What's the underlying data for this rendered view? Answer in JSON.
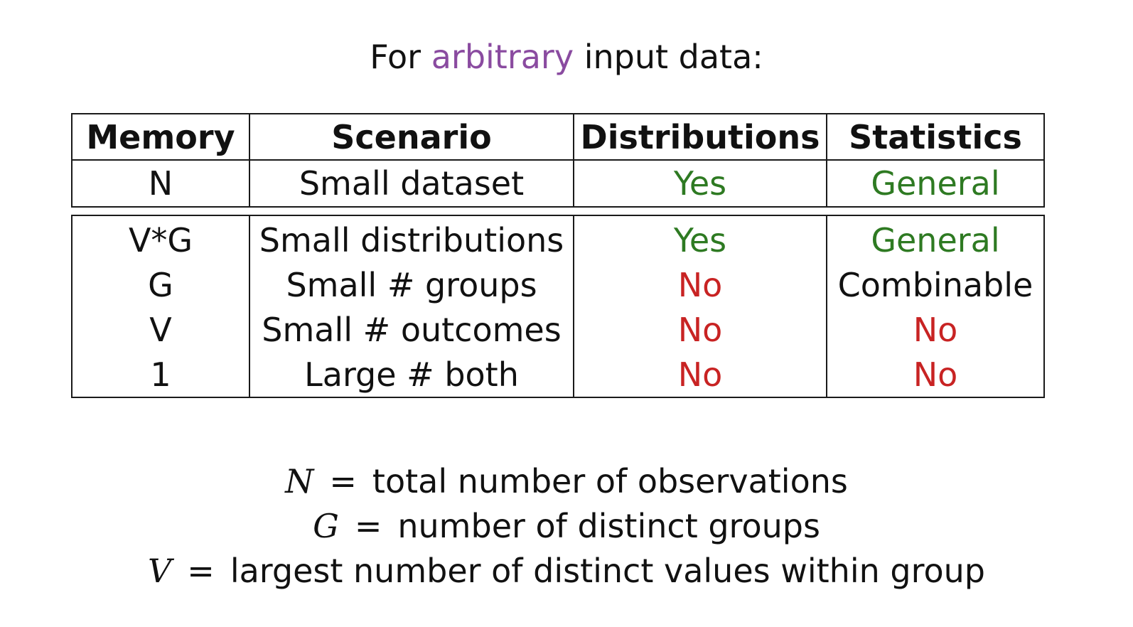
{
  "title": {
    "prefix": "For",
    "accent": "arbitrary",
    "suffix": "input data:",
    "accent_color": "#8a4ba0"
  },
  "table": {
    "headers": [
      "Memory",
      "Scenario",
      "Distributions",
      "Statistics"
    ],
    "top_rows": [
      {
        "memory": "N",
        "scenario": "Small dataset",
        "distributions": "Yes",
        "statistics": "General"
      }
    ],
    "bottom_rows": [
      {
        "memory": "V*G",
        "scenario": "Small distributions",
        "distributions": "Yes",
        "statistics": "General"
      },
      {
        "memory": "G",
        "scenario": "Small # groups",
        "distributions": "No",
        "statistics": "Combinable"
      },
      {
        "memory": "V",
        "scenario": "Small # outcomes",
        "distributions": "No",
        "statistics": "No"
      },
      {
        "memory": "1",
        "scenario": "Large # both",
        "distributions": "No",
        "statistics": "No"
      }
    ]
  },
  "colors": {
    "yes": "#2e7a22",
    "general": "#2e7a22",
    "no": "#c82323",
    "neutral": "#111111"
  },
  "legend": [
    {
      "symbol": "N",
      "equals": "=",
      "text": "total number of observations"
    },
    {
      "symbol": "G",
      "equals": "=",
      "text": "number of distinct groups"
    },
    {
      "symbol": "V",
      "equals": "=",
      "text": "largest number of distinct values within group"
    }
  ]
}
